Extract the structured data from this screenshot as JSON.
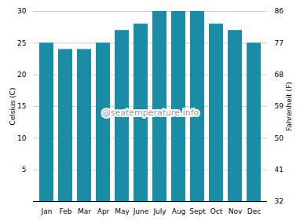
{
  "chart_data": {
    "type": "bar",
    "categories": [
      "Jan",
      "Feb",
      "Mar",
      "Apr",
      "May",
      "June",
      "July",
      "Aug",
      "Sept",
      "Oct",
      "Nov",
      "Dec"
    ],
    "values": [
      25,
      24,
      24,
      25,
      27,
      28,
      30,
      30,
      30,
      28,
      27,
      25
    ],
    "color": "#1b8ca6",
    "ylabel": "Celsius (C)",
    "y2label": "Fahrenheit (F)",
    "ylim": [
      0,
      30
    ],
    "yticks": [
      5,
      10,
      15,
      20,
      25,
      30
    ],
    "y2lim": [
      32,
      86
    ],
    "y2ticks": [
      32,
      41,
      50,
      59,
      68,
      77,
      86
    ],
    "grid": true,
    "annotations": [
      "@seatemperature.info"
    ]
  }
}
